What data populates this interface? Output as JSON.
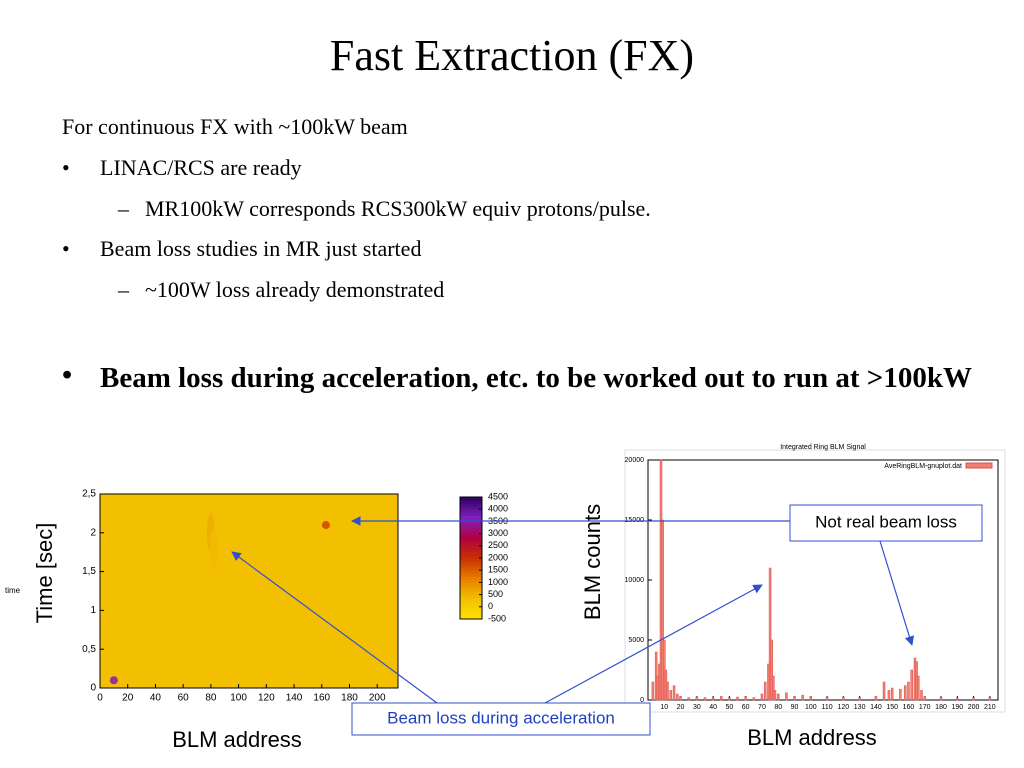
{
  "title": "Fast Extraction (FX)",
  "intro": "For continuous FX with ~100kW beam",
  "bullets": [
    {
      "text": "LINAC/RCS are ready",
      "subs": [
        "MR100kW corresponds RCS300kW equiv protons/pulse."
      ]
    },
    {
      "text": "Beam loss studies in MR just started",
      "subs": [
        "~100W loss already demonstrated"
      ]
    }
  ],
  "bold_bullet": "Beam loss during acceleration, etc. to be worked out to run at >100kW",
  "annotations": [
    "Not real beam loss",
    "Beam loss during acceleration"
  ],
  "chart_data": [
    {
      "type": "heatmap",
      "xlabel": "BLM address",
      "ylabel": "Time [sec]",
      "side_label": "time",
      "xlim": [
        0,
        215
      ],
      "ylim": [
        0,
        2.5
      ],
      "xticks": [
        0,
        20,
        40,
        60,
        80,
        100,
        120,
        140,
        160,
        180,
        200
      ],
      "yticks": [
        0,
        {
          "value": 0.5,
          "label": "0,5"
        },
        1,
        {
          "value": 1.5,
          "label": "1,5"
        },
        2,
        {
          "value": 2.5,
          "label": "2,5"
        }
      ],
      "clim": [
        -500,
        4500
      ],
      "cticks": [
        4500,
        4000,
        3500,
        3000,
        2500,
        2000,
        1500,
        1000,
        500,
        0,
        -500
      ],
      "colorscale": [
        "#ffe400",
        "#f2c000",
        "#e88000",
        "#c83000",
        "#b00040",
        "#8020c0",
        "#300060"
      ],
      "x": [
        10,
        163,
        80,
        82
      ],
      "y": [
        0.1,
        2.1,
        2.0,
        1.8
      ],
      "values": [
        3500,
        1800,
        600,
        400
      ]
    },
    {
      "type": "bar",
      "title": "Integrated Ring BLM Signal",
      "legend": "AveRingBLM-gnuplot.dat",
      "xlabel": "BLM address",
      "ylabel": "BLM counts",
      "color": "#f08070",
      "xlim": [
        0,
        215
      ],
      "ylim": [
        0,
        20000
      ],
      "xticks": [
        0,
        10,
        20,
        30,
        40,
        50,
        60,
        70,
        80,
        90,
        100,
        110,
        120,
        130,
        140,
        150,
        160,
        170,
        180,
        190,
        200,
        210
      ],
      "yticks": [
        0,
        5000,
        10000,
        15000,
        20000
      ],
      "x": [
        3,
        5,
        6,
        7,
        8,
        9,
        10,
        11,
        12,
        14,
        16,
        18,
        20,
        25,
        30,
        35,
        40,
        45,
        50,
        55,
        60,
        65,
        70,
        72,
        74,
        75,
        76,
        77,
        78,
        80,
        85,
        90,
        95,
        100,
        110,
        120,
        130,
        140,
        145,
        148,
        150,
        155,
        158,
        160,
        162,
        164,
        165,
        166,
        168,
        170,
        180,
        190,
        200,
        210
      ],
      "values": [
        1500,
        4000,
        2000,
        3000,
        20000,
        15000,
        5000,
        2500,
        1500,
        800,
        1200,
        500,
        300,
        200,
        250,
        200,
        150,
        300,
        200,
        250,
        300,
        200,
        500,
        1500,
        3000,
        11000,
        5000,
        2000,
        800,
        500,
        600,
        300,
        400,
        300,
        200,
        250,
        200,
        300,
        1500,
        800,
        1000,
        900,
        1200,
        1500,
        2500,
        3500,
        3200,
        2000,
        800,
        300,
        200,
        150,
        200,
        200
      ]
    }
  ]
}
